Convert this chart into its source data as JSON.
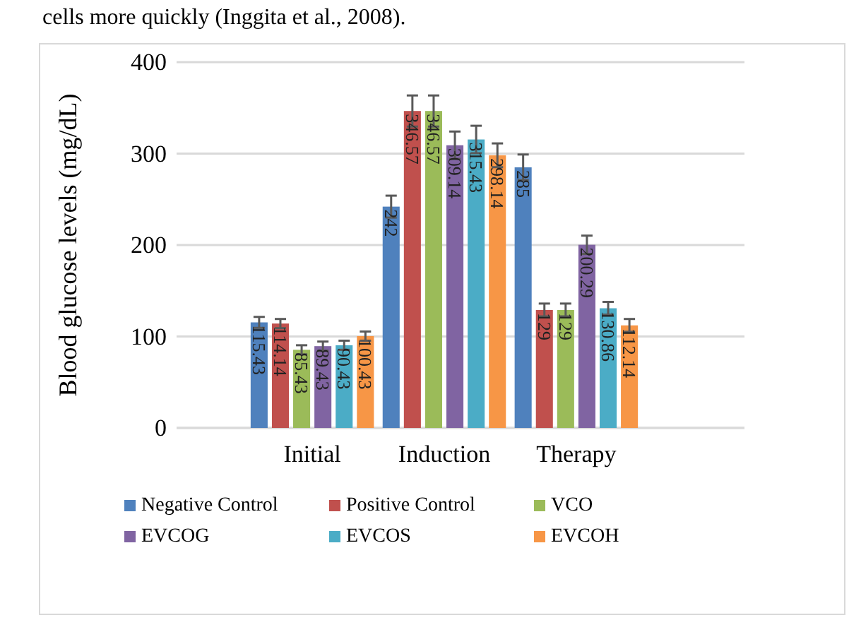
{
  "chart_data": {
    "type": "bar",
    "ylabel": "Blood glucose levels (mg/dL)",
    "categories": [
      "Initial",
      "Induction",
      "Therapy"
    ],
    "ylim": [
      0,
      400
    ],
    "yticks": [
      0,
      100,
      200,
      300,
      400
    ],
    "grid": "y",
    "legend": "bottom",
    "data_labels": true,
    "annotations": [
      "cells more quickly (Inggita et al., 2008)."
    ],
    "series": [
      {
        "name": "Negative Control",
        "color": "#4f81bd",
        "values": [
          115.43,
          242,
          285
        ],
        "errors": [
          6,
          12,
          14
        ]
      },
      {
        "name": "Positive Control",
        "color": "#c0504d",
        "values": [
          114.14,
          346.57,
          129
        ],
        "errors": [
          5,
          17,
          7
        ]
      },
      {
        "name": "VCO",
        "color": "#9bbb59",
        "values": [
          85.43,
          346.57,
          129
        ],
        "errors": [
          5,
          17,
          7
        ]
      },
      {
        "name": "EVCOG",
        "color": "#8064a2",
        "values": [
          89.43,
          309.14,
          200.29
        ],
        "errors": [
          5,
          15,
          10
        ]
      },
      {
        "name": "EVCOS",
        "color": "#4bacc6",
        "values": [
          90.43,
          315.43,
          130.86
        ],
        "errors": [
          5,
          15,
          7
        ]
      },
      {
        "name": "EVCOH",
        "color": "#f79646",
        "values": [
          100.43,
          298.14,
          112.14
        ],
        "errors": [
          5,
          13,
          7
        ]
      }
    ]
  }
}
